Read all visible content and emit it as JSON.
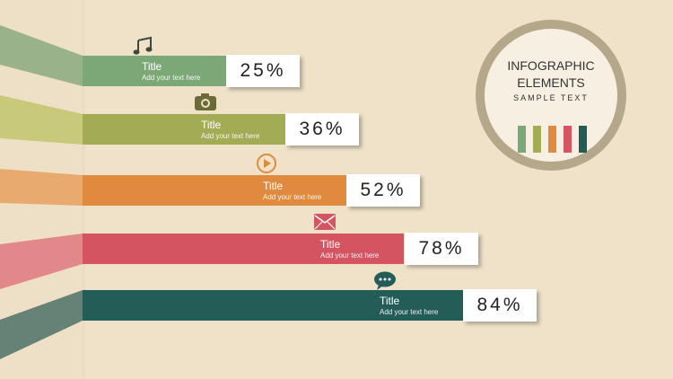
{
  "header": {
    "title_line1": "INFOGRAPHIC",
    "title_line2": "ELEMENTS",
    "subtitle": "SAMPLE TEXT"
  },
  "items": [
    {
      "title": "Title",
      "subtitle": "Add your text here",
      "percent": "25%",
      "value": 25,
      "icon": "music-note-icon",
      "color": "#7ba876"
    },
    {
      "title": "Title",
      "subtitle": "Add your text here",
      "percent": "36%",
      "value": 36,
      "icon": "camera-icon",
      "color": "#a3ab55"
    },
    {
      "title": "Title",
      "subtitle": "Add your text here",
      "percent": "52%",
      "value": 52,
      "icon": "play-icon",
      "color": "#df8a3e"
    },
    {
      "title": "Title",
      "subtitle": "Add your text here",
      "percent": "78%",
      "value": 78,
      "icon": "mail-icon",
      "color": "#d45462"
    },
    {
      "title": "Title",
      "subtitle": "Add your text here",
      "percent": "84%",
      "value": 84,
      "icon": "chat-icon",
      "color": "#245c58"
    }
  ],
  "legend_colors": [
    "#7ba876",
    "#a3ab55",
    "#df8a3e",
    "#d45462",
    "#245c58"
  ]
}
